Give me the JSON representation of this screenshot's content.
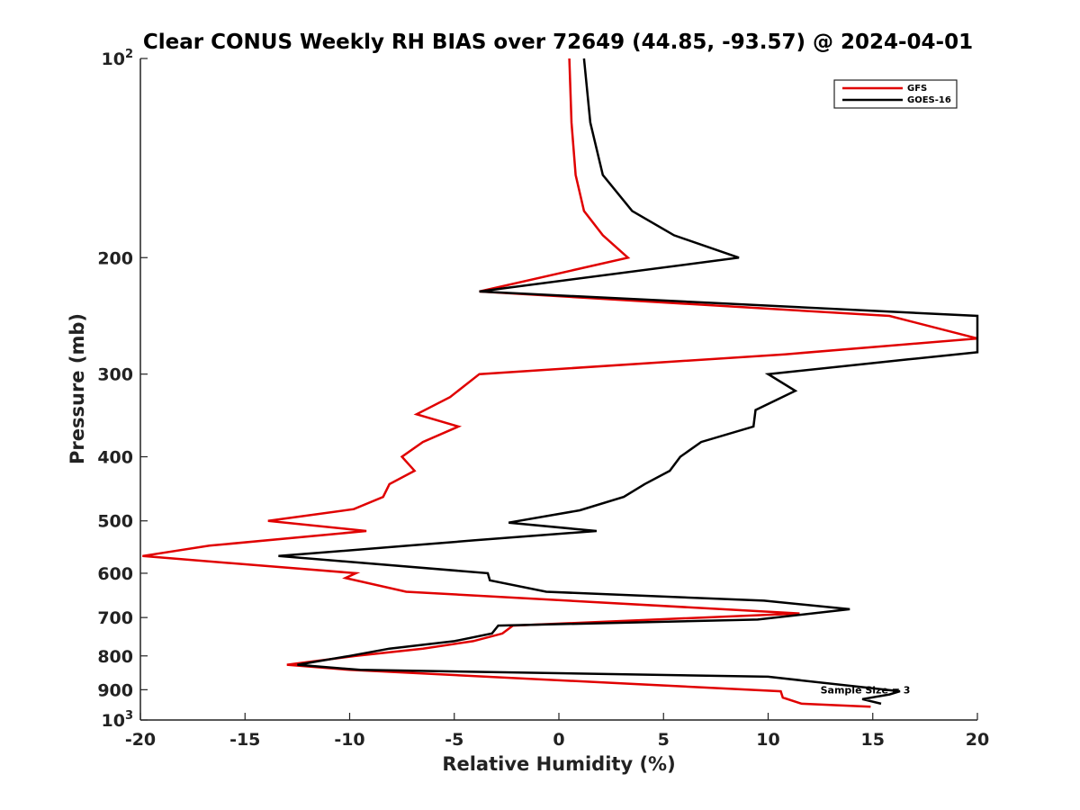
{
  "chart_data": {
    "type": "line",
    "title": "Clear CONUS Weekly RH BIAS over 72649 (44.85, -93.57) @ 2024-04-01",
    "xlabel": "Relative Humidity (%)",
    "ylabel": "Pressure (mb)",
    "xlim": [
      -20,
      20
    ],
    "ylim": [
      1000,
      100
    ],
    "y_scale": "log",
    "y_reversed": true,
    "grid": false,
    "legend_position": "top-right",
    "x_ticks": [
      -20,
      -15,
      -10,
      -5,
      0,
      5,
      10,
      15,
      20
    ],
    "x_tick_labels": [
      "-20",
      "-15",
      "-10",
      "-5",
      "0",
      "5",
      "10",
      "15",
      "20"
    ],
    "y_ticks": [
      900,
      800,
      700,
      600,
      500,
      400,
      300,
      200
    ],
    "y_tick_labels": [
      "900",
      "800",
      "700",
      "600",
      "500",
      "400",
      "300",
      "200"
    ],
    "y_top_label": {
      "base": "10",
      "exp": "2"
    },
    "y_bottom_label": {
      "base": "10",
      "exp": "3"
    },
    "annotation": {
      "text": "Sample Size = 3",
      "x": 12.5,
      "y": 900
    },
    "series": [
      {
        "name": "GFS",
        "color": "#e00000",
        "points": [
          [
            0.5,
            100
          ],
          [
            0.6,
            125
          ],
          [
            0.8,
            150
          ],
          [
            1.2,
            170
          ],
          [
            2.1,
            185
          ],
          [
            3.3,
            200
          ],
          [
            -3.8,
            225
          ],
          [
            15.8,
            245
          ],
          [
            20.0,
            265
          ],
          [
            10.8,
            280
          ],
          [
            -3.8,
            300
          ],
          [
            -5.2,
            325
          ],
          [
            -6.8,
            345
          ],
          [
            -4.8,
            360
          ],
          [
            -6.5,
            380
          ],
          [
            -7.5,
            400
          ],
          [
            -6.9,
            420
          ],
          [
            -8.1,
            440
          ],
          [
            -8.4,
            460
          ],
          [
            -9.8,
            480
          ],
          [
            -13.9,
            500
          ],
          [
            -9.2,
            518
          ],
          [
            -16.7,
            545
          ],
          [
            -19.9,
            565
          ],
          [
            -9.7,
            600
          ],
          [
            -10.2,
            610
          ],
          [
            -7.3,
            640
          ],
          [
            11.5,
            690
          ],
          [
            -2.2,
            720
          ],
          [
            -2.7,
            740
          ],
          [
            -4.1,
            760
          ],
          [
            -6.5,
            780
          ],
          [
            -9.7,
            800
          ],
          [
            -13.0,
            825
          ],
          [
            -10.0,
            840
          ],
          [
            10.6,
            905
          ],
          [
            10.7,
            925
          ],
          [
            11.6,
            945
          ],
          [
            14.9,
            955
          ]
        ]
      },
      {
        "name": "GOES-16",
        "color": "#000000",
        "points": [
          [
            1.2,
            100
          ],
          [
            1.5,
            125
          ],
          [
            2.1,
            150
          ],
          [
            3.5,
            170
          ],
          [
            5.5,
            185
          ],
          [
            8.6,
            200
          ],
          [
            -3.8,
            225
          ],
          [
            20.0,
            245
          ],
          [
            20.0,
            278
          ],
          [
            16.7,
            285
          ],
          [
            10.0,
            300
          ],
          [
            11.3,
            318
          ],
          [
            9.4,
            340
          ],
          [
            9.3,
            360
          ],
          [
            6.8,
            380
          ],
          [
            5.8,
            400
          ],
          [
            5.3,
            420
          ],
          [
            4.1,
            440
          ],
          [
            3.1,
            460
          ],
          [
            1.0,
            482
          ],
          [
            -2.4,
            503
          ],
          [
            1.8,
            518
          ],
          [
            -4.0,
            535
          ],
          [
            -7.2,
            545
          ],
          [
            -13.4,
            565
          ],
          [
            -3.4,
            600
          ],
          [
            -3.3,
            615
          ],
          [
            -0.6,
            640
          ],
          [
            9.8,
            660
          ],
          [
            13.9,
            680
          ],
          [
            9.5,
            705
          ],
          [
            -2.9,
            720
          ],
          [
            -3.2,
            740
          ],
          [
            -5.0,
            760
          ],
          [
            -8.1,
            780
          ],
          [
            -10.0,
            800
          ],
          [
            -12.5,
            825
          ],
          [
            -9.5,
            840
          ],
          [
            10.0,
            860
          ],
          [
            16.3,
            905
          ],
          [
            15.8,
            915
          ],
          [
            14.5,
            930
          ],
          [
            15.4,
            945
          ]
        ]
      }
    ]
  }
}
